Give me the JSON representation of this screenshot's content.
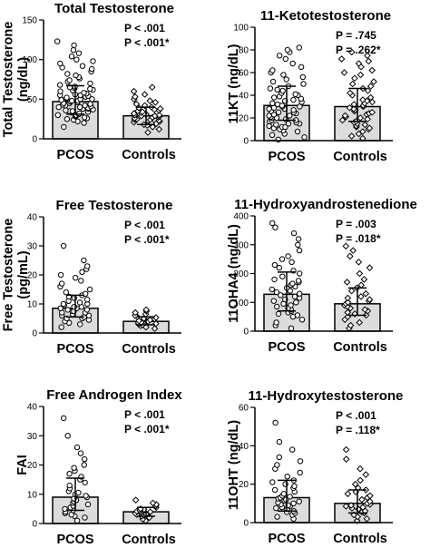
{
  "chart_data": [
    {
      "type": "bar",
      "title": "Total Testosterone",
      "ylabel": "Total Testosterone\n(ng/dL)",
      "categories": [
        "PCOS",
        "Controls"
      ],
      "values": [
        47,
        29
      ],
      "error": [
        [
          31,
          67
        ],
        [
          18,
          40
        ]
      ],
      "ylim": [
        0,
        150
      ],
      "yticks": [
        "0",
        "50",
        "100",
        "150"
      ],
      "annotations": [
        "P < .001",
        "P < .001*"
      ],
      "points": [
        [
          15,
          20,
          22,
          24,
          25,
          26,
          27,
          28,
          29,
          30,
          30,
          31,
          32,
          33,
          34,
          35,
          35,
          36,
          37,
          38,
          38,
          39,
          40,
          40,
          41,
          42,
          42,
          43,
          44,
          45,
          45,
          46,
          47,
          48,
          48,
          49,
          50,
          50,
          51,
          52,
          53,
          54,
          55,
          55,
          56,
          57,
          58,
          60,
          61,
          62,
          63,
          64,
          65,
          66,
          68,
          70,
          72,
          74,
          76,
          78,
          80,
          82,
          85,
          88,
          90,
          92,
          95,
          98,
          100,
          104,
          108,
          112,
          118,
          123
        ],
        [
          8,
          12,
          15,
          17,
          18,
          19,
          20,
          21,
          22,
          23,
          24,
          24,
          25,
          26,
          27,
          27,
          28,
          29,
          29,
          30,
          30,
          31,
          32,
          32,
          33,
          34,
          35,
          36,
          37,
          38,
          39,
          40,
          42,
          44,
          46,
          48,
          50,
          53,
          56,
          60,
          65
        ]
      ]
    },
    {
      "type": "bar",
      "title": "11-Ketotestosterone",
      "ylabel": "11KT (ng/dL)",
      "categories": [
        "PCOS",
        "Controls"
      ],
      "values": [
        31,
        30
      ],
      "error": [
        [
          18,
          48
        ],
        [
          17,
          46
        ]
      ],
      "ylim": [
        0,
        100
      ],
      "yticks": [
        "0",
        "20",
        "40",
        "60",
        "80",
        "100"
      ],
      "annotations": [
        "P = .745",
        "P = .262*"
      ],
      "points": [
        [
          1,
          3,
          5,
          6,
          8,
          9,
          10,
          11,
          12,
          12,
          13,
          14,
          15,
          15,
          16,
          17,
          18,
          18,
          19,
          20,
          20,
          21,
          22,
          22,
          23,
          24,
          25,
          25,
          26,
          27,
          28,
          28,
          29,
          30,
          30,
          31,
          32,
          33,
          34,
          35,
          36,
          37,
          38,
          39,
          40,
          41,
          42,
          44,
          45,
          46,
          48,
          50,
          52,
          54,
          56,
          58,
          60,
          62,
          65,
          68,
          72,
          75,
          78,
          80,
          82
        ],
        [
          2,
          4,
          6,
          8,
          10,
          11,
          12,
          13,
          14,
          15,
          16,
          17,
          18,
          19,
          20,
          21,
          22,
          23,
          24,
          25,
          26,
          27,
          28,
          29,
          30,
          31,
          32,
          33,
          34,
          35,
          36,
          38,
          40,
          42,
          44,
          46,
          48,
          50,
          52,
          55,
          58,
          60,
          62,
          65,
          68,
          70,
          72,
          75,
          78
        ]
      ]
    },
    {
      "type": "bar",
      "title": "Free Testosterone",
      "ylabel": "Free Testosterone\n(pg/mL)",
      "categories": [
        "PCOS",
        "Controls"
      ],
      "values": [
        8.5,
        4
      ],
      "error": [
        [
          5.5,
          13
        ],
        [
          2.8,
          5.6
        ]
      ],
      "ylim": [
        0,
        40
      ],
      "yticks": [
        "0",
        "10",
        "20",
        "30",
        "40"
      ],
      "annotations": [
        "P < .001",
        "P < .001*"
      ],
      "points": [
        [
          2,
          3,
          3.5,
          4,
          4.5,
          5,
          5,
          5.5,
          6,
          6,
          6.5,
          7,
          7,
          7.5,
          7.5,
          8,
          8,
          8.5,
          8.5,
          9,
          9,
          9.5,
          10,
          10,
          10.5,
          11,
          11.5,
          12,
          12.5,
          13,
          13.5,
          14,
          15,
          16,
          17,
          18,
          19,
          20,
          21,
          22,
          23,
          25,
          30
        ],
        [
          1.5,
          2,
          2.5,
          2.8,
          3,
          3.2,
          3.5,
          3.7,
          4,
          4.2,
          4.5,
          4.8,
          5,
          5.3,
          5.6,
          6,
          6.5,
          7,
          7.5,
          8
        ]
      ]
    },
    {
      "type": "bar",
      "title": "11-Hydroxyandrostenedione",
      "ylabel": "11OHA4 (ng/dL)",
      "categories": [
        "PCOS",
        "Controls"
      ],
      "values": [
        128,
        95
      ],
      "error": [
        [
          70,
          205
        ],
        [
          55,
          150
        ]
      ],
      "ylim": [
        0,
        400
      ],
      "yticks": [
        "0",
        "100",
        "200",
        "300",
        "400"
      ],
      "annotations": [
        "P = .003",
        "P = .018*"
      ],
      "points": [
        [
          10,
          20,
          30,
          40,
          50,
          55,
          60,
          65,
          70,
          75,
          80,
          85,
          90,
          95,
          100,
          105,
          110,
          115,
          120,
          125,
          130,
          135,
          140,
          145,
          150,
          155,
          160,
          165,
          170,
          175,
          180,
          190,
          200,
          210,
          220,
          230,
          240,
          250,
          260,
          280,
          300,
          320,
          340,
          360,
          375
        ],
        [
          10,
          20,
          30,
          40,
          50,
          55,
          60,
          65,
          70,
          75,
          80,
          85,
          90,
          95,
          100,
          105,
          110,
          115,
          120,
          130,
          140,
          150,
          160,
          170,
          180,
          200,
          220,
          240,
          260,
          280,
          295
        ]
      ]
    },
    {
      "type": "bar",
      "title": "Free Androgen Index",
      "ylabel": "FAI",
      "categories": [
        "PCOS",
        "Controls"
      ],
      "values": [
        9,
        4
      ],
      "error": [
        [
          4.5,
          15.5
        ],
        [
          2.5,
          5.5
        ]
      ],
      "ylim": [
        0,
        40
      ],
      "yticks": [
        "0",
        "10",
        "20",
        "30",
        "40"
      ],
      "annotations": [
        "P < .001",
        "P < .001*"
      ],
      "points": [
        [
          1,
          2,
          2.5,
          3,
          3.5,
          4,
          4.5,
          5,
          5.5,
          6,
          6.5,
          7,
          7.5,
          8,
          8.5,
          9,
          9.5,
          10,
          10.5,
          11,
          12,
          13,
          14,
          15,
          16,
          17,
          18,
          19,
          20,
          22,
          24,
          26,
          30,
          36
        ],
        [
          1,
          1.5,
          2,
          2.5,
          2.8,
          3,
          3.2,
          3.5,
          3.8,
          4,
          4.2,
          4.5,
          5,
          5.5,
          6,
          6.5,
          7,
          8
        ]
      ]
    },
    {
      "type": "bar",
      "title": "11-Hydroxytestosterone",
      "ylabel": "11OHT (ng/dL)",
      "categories": [
        "PCOS",
        "Controls"
      ],
      "values": [
        13,
        10
      ],
      "error": [
        [
          6,
          22
        ],
        [
          5,
          17
        ]
      ],
      "ylim": [
        0,
        60
      ],
      "yticks": [
        "0",
        "20",
        "40",
        "60"
      ],
      "annotations": [
        "P < .001",
        "P = .118*"
      ],
      "points": [
        [
          2,
          3,
          4,
          5,
          5.5,
          6,
          7,
          7.5,
          8,
          8.5,
          9,
          9.5,
          10,
          10.5,
          11,
          11.5,
          12,
          12.5,
          13,
          13.5,
          14,
          15,
          16,
          17,
          18,
          19,
          20,
          21,
          22,
          24,
          26,
          28,
          30,
          32,
          34,
          38,
          42,
          52
        ],
        [
          1,
          2,
          3,
          4,
          5,
          5.5,
          6,
          7,
          7.5,
          8,
          8.5,
          9,
          9.5,
          10,
          11,
          12,
          13,
          14,
          15,
          16,
          17,
          18,
          20,
          22,
          25,
          28,
          33,
          38
        ]
      ]
    }
  ],
  "colors": {
    "bar_fill": "#dcdcdc",
    "stroke": "#000000",
    "point_fill": "#ffffff"
  }
}
